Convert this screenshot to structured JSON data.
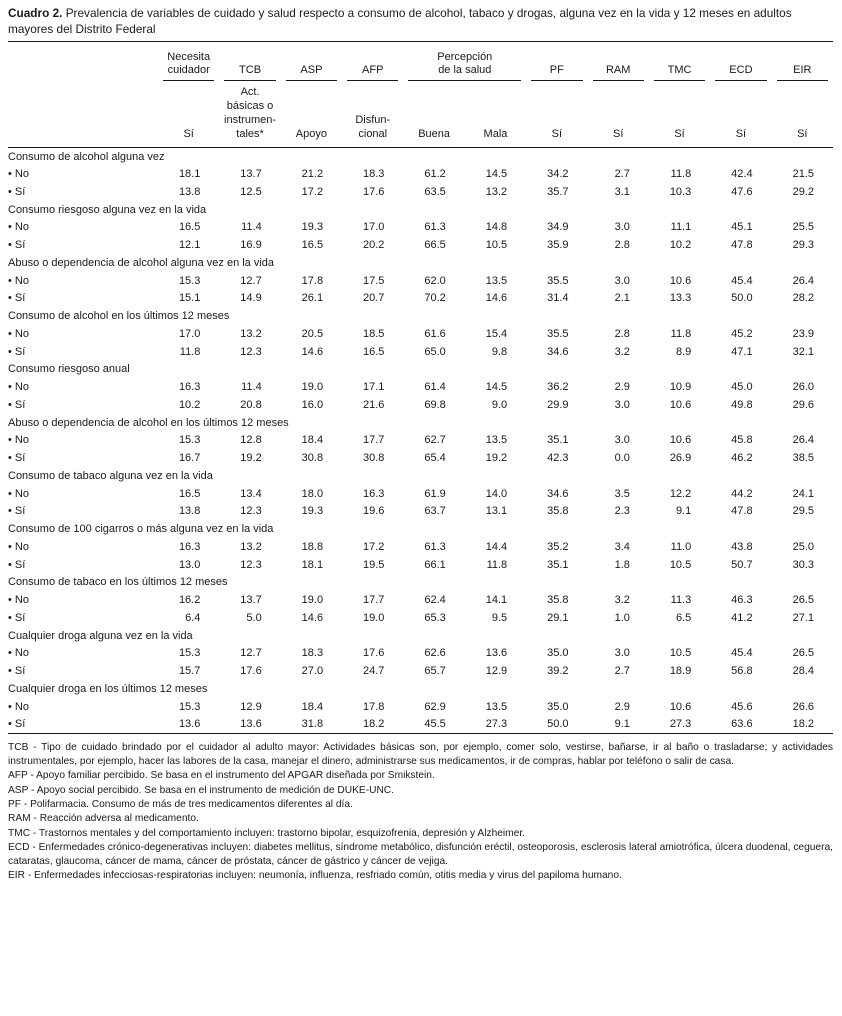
{
  "title": {
    "label": "Cuadro 2.",
    "text": "Prevalencia de variables de cuidado y salud respecto a consumo de alcohol, tabaco y drogas, alguna vez en la vida y 12 meses en adultos mayores del Distrito Federal"
  },
  "table": {
    "groups": [
      {
        "label": "Necesita\ncuidador",
        "span": 1
      },
      {
        "label": "TCB",
        "span": 1
      },
      {
        "label": "ASP",
        "span": 1
      },
      {
        "label": "AFP",
        "span": 1
      },
      {
        "label": "Percepción\nde la salud",
        "span": 2
      },
      {
        "label": "PF",
        "span": 1
      },
      {
        "label": "RAM",
        "span": 1
      },
      {
        "label": "TMC",
        "span": 1
      },
      {
        "label": "ECD",
        "span": 1
      },
      {
        "label": "EIR",
        "span": 1
      }
    ],
    "subheaders": [
      "Sí",
      "Act.\nbásicas o\ninstrumen-\ntales*",
      "Apoyo",
      "Disfun-\ncional",
      "Buena",
      "Mala",
      "Sí",
      "Sí",
      "Sí",
      "Sí",
      "Sí"
    ],
    "sections": [
      {
        "title": "Consumo de alcohol alguna vez",
        "rows": [
          {
            "label": "• No",
            "values": [
              "18.1",
              "13.7",
              "21.2",
              "18.3",
              "61.2",
              "14.5",
              "34.2",
              "2.7",
              "11.8",
              "42.4",
              "21.5"
            ]
          },
          {
            "label": "• Sí",
            "values": [
              "13.8",
              "12.5",
              "17.2",
              "17.6",
              "63.5",
              "13.2",
              "35.7",
              "3.1",
              "10.3",
              "47.6",
              "29.2"
            ]
          }
        ]
      },
      {
        "title": "Consumo riesgoso alguna vez en la vida",
        "rows": [
          {
            "label": "• No",
            "values": [
              "16.5",
              "11.4",
              "19.3",
              "17.0",
              "61.3",
              "14.8",
              "34.9",
              "3.0",
              "11.1",
              "45.1",
              "25.5"
            ]
          },
          {
            "label": "• Sí",
            "values": [
              "12.1",
              "16.9",
              "16.5",
              "20.2",
              "66.5",
              "10.5",
              "35.9",
              "2.8",
              "10.2",
              "47.8",
              "29.3"
            ]
          }
        ]
      },
      {
        "title": "Abuso o dependencia de alcohol alguna vez en la vida",
        "rows": [
          {
            "label": "• No",
            "values": [
              "15.3",
              "12.7",
              "17.8",
              "17.5",
              "62.0",
              "13.5",
              "35.5",
              "3.0",
              "10.6",
              "45.4",
              "26.4"
            ]
          },
          {
            "label": "• Sí",
            "values": [
              "15.1",
              "14.9",
              "26.1",
              "20.7",
              "70.2",
              "14.6",
              "31.4",
              "2.1",
              "13.3",
              "50.0",
              "28.2"
            ]
          }
        ]
      },
      {
        "title": "Consumo de alcohol en los últimos 12 meses",
        "rows": [
          {
            "label": "• No",
            "values": [
              "17.0",
              "13.2",
              "20.5",
              "18.5",
              "61.6",
              "15.4",
              "35.5",
              "2.8",
              "11.8",
              "45.2",
              "23.9"
            ]
          },
          {
            "label": "• Sí",
            "values": [
              "11.8",
              "12.3",
              "14.6",
              "16.5",
              "65.0",
              "9.8",
              "34.6",
              "3.2",
              "8.9",
              "47.1",
              "32.1"
            ]
          }
        ]
      },
      {
        "title": "Consumo riesgoso anual",
        "rows": [
          {
            "label": "• No",
            "values": [
              "16.3",
              "11.4",
              "19.0",
              "17.1",
              "61.4",
              "14.5",
              "36.2",
              "2.9",
              "10.9",
              "45.0",
              "26.0"
            ]
          },
          {
            "label": "• Sí",
            "values": [
              "10.2",
              "20.8",
              "16.0",
              "21.6",
              "69.8",
              "9.0",
              "29.9",
              "3.0",
              "10.6",
              "49.8",
              "29.6"
            ]
          }
        ]
      },
      {
        "title": "Abuso o dependencia de alcohol en los últimos 12 meses",
        "rows": [
          {
            "label": "• No",
            "values": [
              "15.3",
              "12.8",
              "18.4",
              "17.7",
              "62.7",
              "13.5",
              "35.1",
              "3.0",
              "10.6",
              "45.8",
              "26.4"
            ]
          },
          {
            "label": "• Sí",
            "values": [
              "16.7",
              "19.2",
              "30.8",
              "30.8",
              "65.4",
              "19.2",
              "42.3",
              "0.0",
              "26.9",
              "46.2",
              "38.5"
            ]
          }
        ]
      },
      {
        "title": "Consumo de tabaco alguna vez en la vida",
        "rows": [
          {
            "label": "• No",
            "values": [
              "16.5",
              "13.4",
              "18.0",
              "16.3",
              "61.9",
              "14.0",
              "34.6",
              "3.5",
              "12.2",
              "44.2",
              "24.1"
            ]
          },
          {
            "label": "• Sí",
            "values": [
              "13.8",
              "12.3",
              "19.3",
              "19.6",
              "63.7",
              "13.1",
              "35.8",
              "2.3",
              "9.1",
              "47.8",
              "29.5"
            ]
          }
        ]
      },
      {
        "title": "Consumo de 100 cigarros o más alguna vez en la vida",
        "rows": [
          {
            "label": "• No",
            "values": [
              "16.3",
              "13.2",
              "18.8",
              "17.2",
              "61.3",
              "14.4",
              "35.2",
              "3.4",
              "11.0",
              "43.8",
              "25.0"
            ]
          },
          {
            "label": "• Sí",
            "values": [
              "13.0",
              "12.3",
              "18.1",
              "19.5",
              "66.1",
              "11.8",
              "35.1",
              "1.8",
              "10.5",
              "50.7",
              "30.3"
            ]
          }
        ]
      },
      {
        "title": "Consumo de tabaco en los últimos 12 meses",
        "rows": [
          {
            "label": "• No",
            "values": [
              "16.2",
              "13.7",
              "19.0",
              "17.7",
              "62.4",
              "14.1",
              "35.8",
              "3.2",
              "11.3",
              "46.3",
              "26.5"
            ]
          },
          {
            "label": "• Sí",
            "values": [
              "6.4",
              "5.0",
              "14.6",
              "19.0",
              "65.3",
              "9.5",
              "29.1",
              "1.0",
              "6.5",
              "41.2",
              "27.1"
            ]
          }
        ]
      },
      {
        "title": "Cualquier droga alguna vez en la vida",
        "rows": [
          {
            "label": "• No",
            "values": [
              "15.3",
              "12.7",
              "18.3",
              "17.6",
              "62.6",
              "13.6",
              "35.0",
              "3.0",
              "10.5",
              "45.4",
              "26.5"
            ]
          },
          {
            "label": "• Sí",
            "values": [
              "15.7",
              "17.6",
              "27.0",
              "24.7",
              "65.7",
              "12.9",
              "39.2",
              "2.7",
              "18.9",
              "56.8",
              "28.4"
            ]
          }
        ]
      },
      {
        "title": "Cualquier droga en los últimos 12 meses",
        "rows": [
          {
            "label": "• No",
            "values": [
              "15.3",
              "12.9",
              "18.4",
              "17.8",
              "62.9",
              "13.5",
              "35.0",
              "2.9",
              "10.6",
              "45.6",
              "26.6"
            ]
          },
          {
            "label": "• Sí",
            "values": [
              "13.6",
              "13.6",
              "31.8",
              "18.2",
              "45.5",
              "27.3",
              "50.0",
              "9.1",
              "27.3",
              "63.6",
              "18.2"
            ]
          }
        ]
      }
    ]
  },
  "footnotes": [
    "TCB - Tipo de cuidado brindado por el cuidador al adulto mayor: Actividades básicas son, por ejemplo, comer solo, vestirse, bañarse, ir al baño o trasladarse; y actividades instrumentales, por ejemplo, hacer las labores de la casa, manejar el dinero, administrarse sus medicamentos, ir de compras, hablar por teléfono o salir de casa.",
    "AFP - Apoyo familiar percibido. Se basa en el instrumento del APGAR diseñada por Smikstein.",
    "ASP - Apoyo social percibido. Se basa en el instrumento de medición de DUKE-UNC.",
    "PF - Polifarmacia. Consumo de más de tres medicamentos diferentes al día.",
    "RAM - Reacción adversa al medicamento.",
    "TMC - Trastornos mentales y del comportamiento incluyen: trastorno bipolar, esquizofrenia, depresión y Alzheimer.",
    "ECD - Enfermedades crónico-degenerativas incluyen: diabetes mellitus, síndrome metabólico, disfunción eréctil, osteoporosis, esclerosis lateral amiotrófica, úlcera duodenal, ceguera, cataratas, glaucoma, cáncer de mama, cáncer de próstata, cáncer de gástrico y cáncer de vejiga.",
    "EIR - Enfermedades infecciosas-respiratorias incluyen: neumonía, influenza, resfriado común, otitis media y virus del papiloma humano."
  ]
}
